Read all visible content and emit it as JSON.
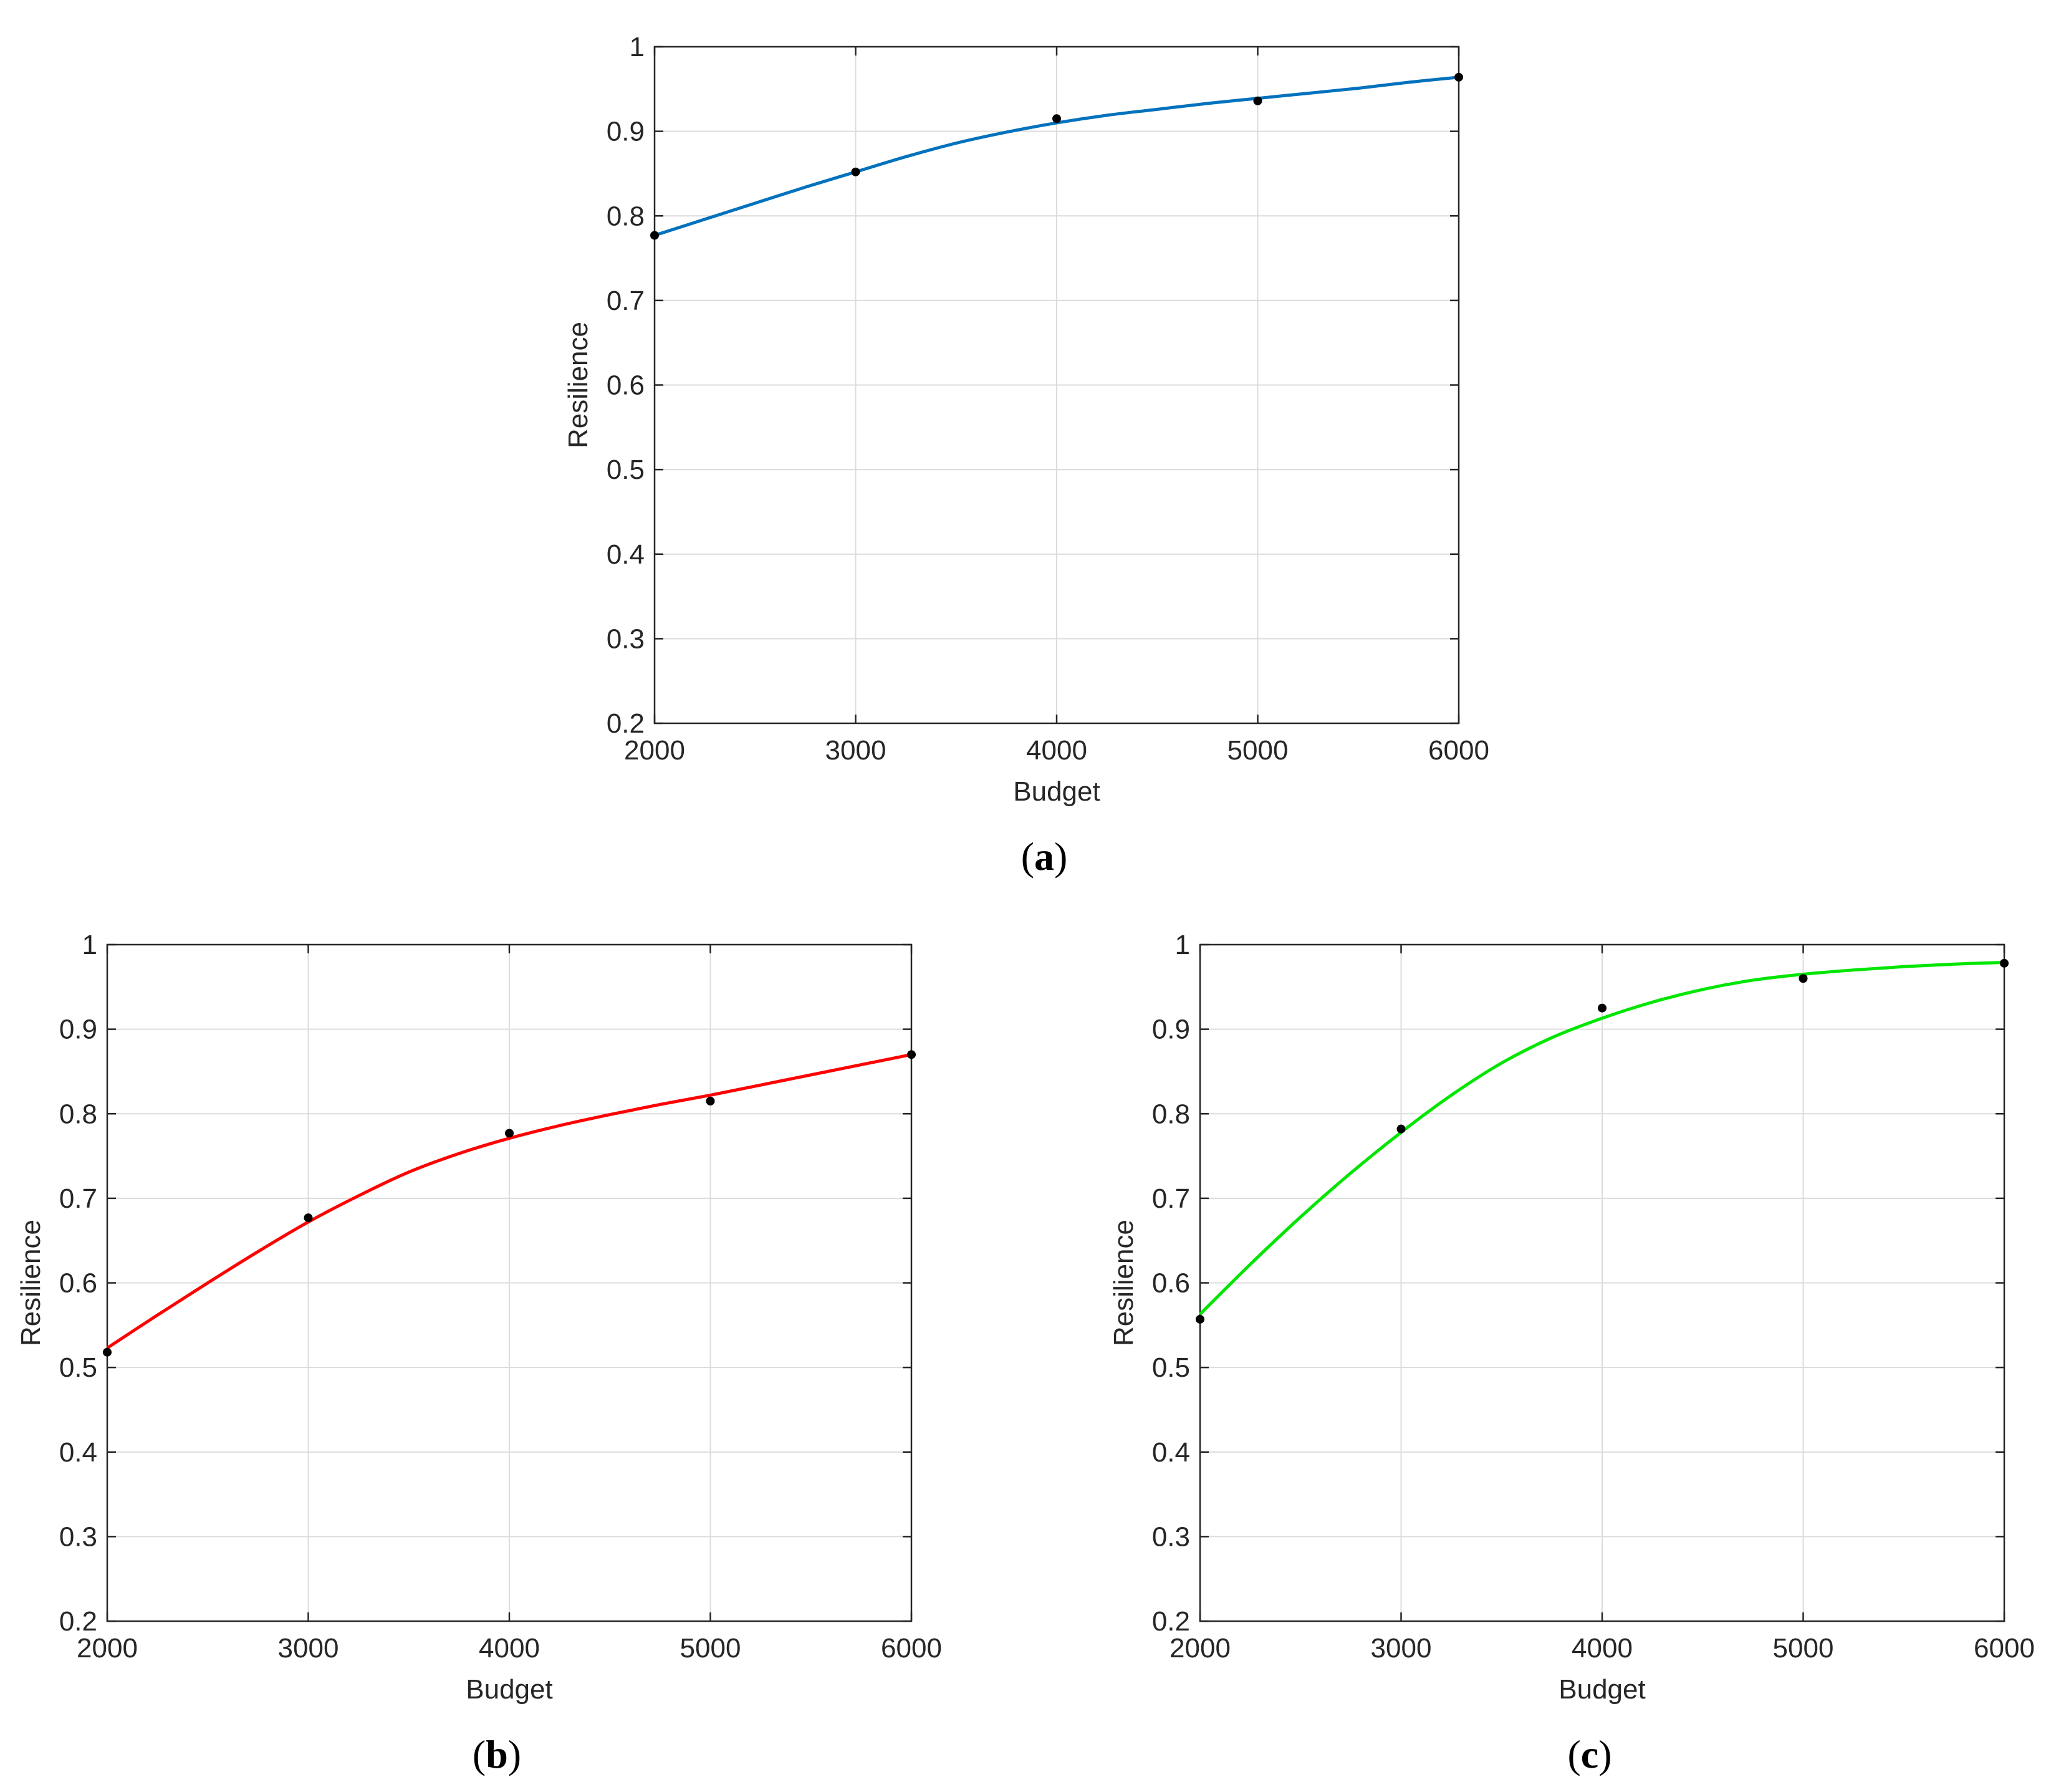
{
  "chart_data": [
    {
      "type": "line",
      "caption": "a",
      "xlabel": "Budget",
      "ylabel": "Resilience",
      "xlim": [
        2000,
        6000
      ],
      "ylim": [
        0.2,
        1
      ],
      "xticks": [
        2000,
        3000,
        4000,
        5000,
        6000
      ],
      "yticks": [
        0.2,
        0.3,
        0.4,
        0.5,
        0.6,
        0.7,
        0.8,
        0.9,
        1
      ],
      "grid": true,
      "line_color": "#0072BD",
      "marker_color": "#000000",
      "series": [
        {
          "points": {
            "x": [
              2000,
              3000,
              4000,
              5000,
              6000
            ],
            "y": [
              0.777,
              0.852,
              0.915,
              0.936,
              0.964
            ]
          },
          "fit": {
            "x": [
              2000,
              2250,
              2500,
              2750,
              3000,
              3250,
              3500,
              3750,
              4000,
              4250,
              4500,
              4750,
              5000,
              5250,
              5500,
              5750,
              6000
            ],
            "y": [
              0.777,
              0.796,
              0.815,
              0.834,
              0.852,
              0.87,
              0.886,
              0.899,
              0.91,
              0.919,
              0.926,
              0.933,
              0.939,
              0.945,
              0.951,
              0.958,
              0.964
            ]
          }
        }
      ]
    },
    {
      "type": "line",
      "caption": "b",
      "xlabel": "Budget",
      "ylabel": "Resilience",
      "xlim": [
        2000,
        6000
      ],
      "ylim": [
        0.2,
        1
      ],
      "xticks": [
        2000,
        3000,
        4000,
        5000,
        6000
      ],
      "yticks": [
        0.2,
        0.3,
        0.4,
        0.5,
        0.6,
        0.7,
        0.8,
        0.9,
        1
      ],
      "grid": true,
      "line_color": "#FF0000",
      "marker_color": "#000000",
      "series": [
        {
          "points": {
            "x": [
              2000,
              3000,
              4000,
              5000,
              6000
            ],
            "y": [
              0.518,
              0.677,
              0.777,
              0.815,
              0.87
            ]
          },
          "fit": {
            "x": [
              2000,
              2250,
              2500,
              2750,
              3000,
              3250,
              3500,
              3750,
              4000,
              4250,
              4500,
              4750,
              5000,
              5250,
              5500,
              5750,
              6000
            ],
            "y": [
              0.523,
              0.562,
              0.6,
              0.637,
              0.672,
              0.703,
              0.731,
              0.753,
              0.771,
              0.786,
              0.799,
              0.811,
              0.822,
              0.834,
              0.846,
              0.858,
              0.87
            ]
          }
        }
      ]
    },
    {
      "type": "line",
      "caption": "c",
      "xlabel": "Budget",
      "ylabel": "Resilience",
      "xlim": [
        2000,
        6000
      ],
      "ylim": [
        0.2,
        1
      ],
      "xticks": [
        2000,
        3000,
        4000,
        5000,
        6000
      ],
      "yticks": [
        0.2,
        0.3,
        0.4,
        0.5,
        0.6,
        0.7,
        0.8,
        0.9,
        1
      ],
      "grid": true,
      "line_color": "#00E600",
      "marker_color": "#000000",
      "series": [
        {
          "points": {
            "x": [
              2000,
              3000,
              4000,
              5000,
              6000
            ],
            "y": [
              0.557,
              0.782,
              0.925,
              0.96,
              0.978
            ]
          },
          "fit": {
            "x": [
              2000,
              2250,
              2500,
              2750,
              3000,
              3250,
              3500,
              3750,
              4000,
              4250,
              4500,
              4750,
              5000,
              5250,
              5500,
              5750,
              6000
            ],
            "y": [
              0.563,
              0.622,
              0.678,
              0.73,
              0.778,
              0.822,
              0.86,
              0.89,
              0.913,
              0.932,
              0.947,
              0.958,
              0.965,
              0.97,
              0.974,
              0.977,
              0.979
            ]
          }
        }
      ]
    }
  ]
}
